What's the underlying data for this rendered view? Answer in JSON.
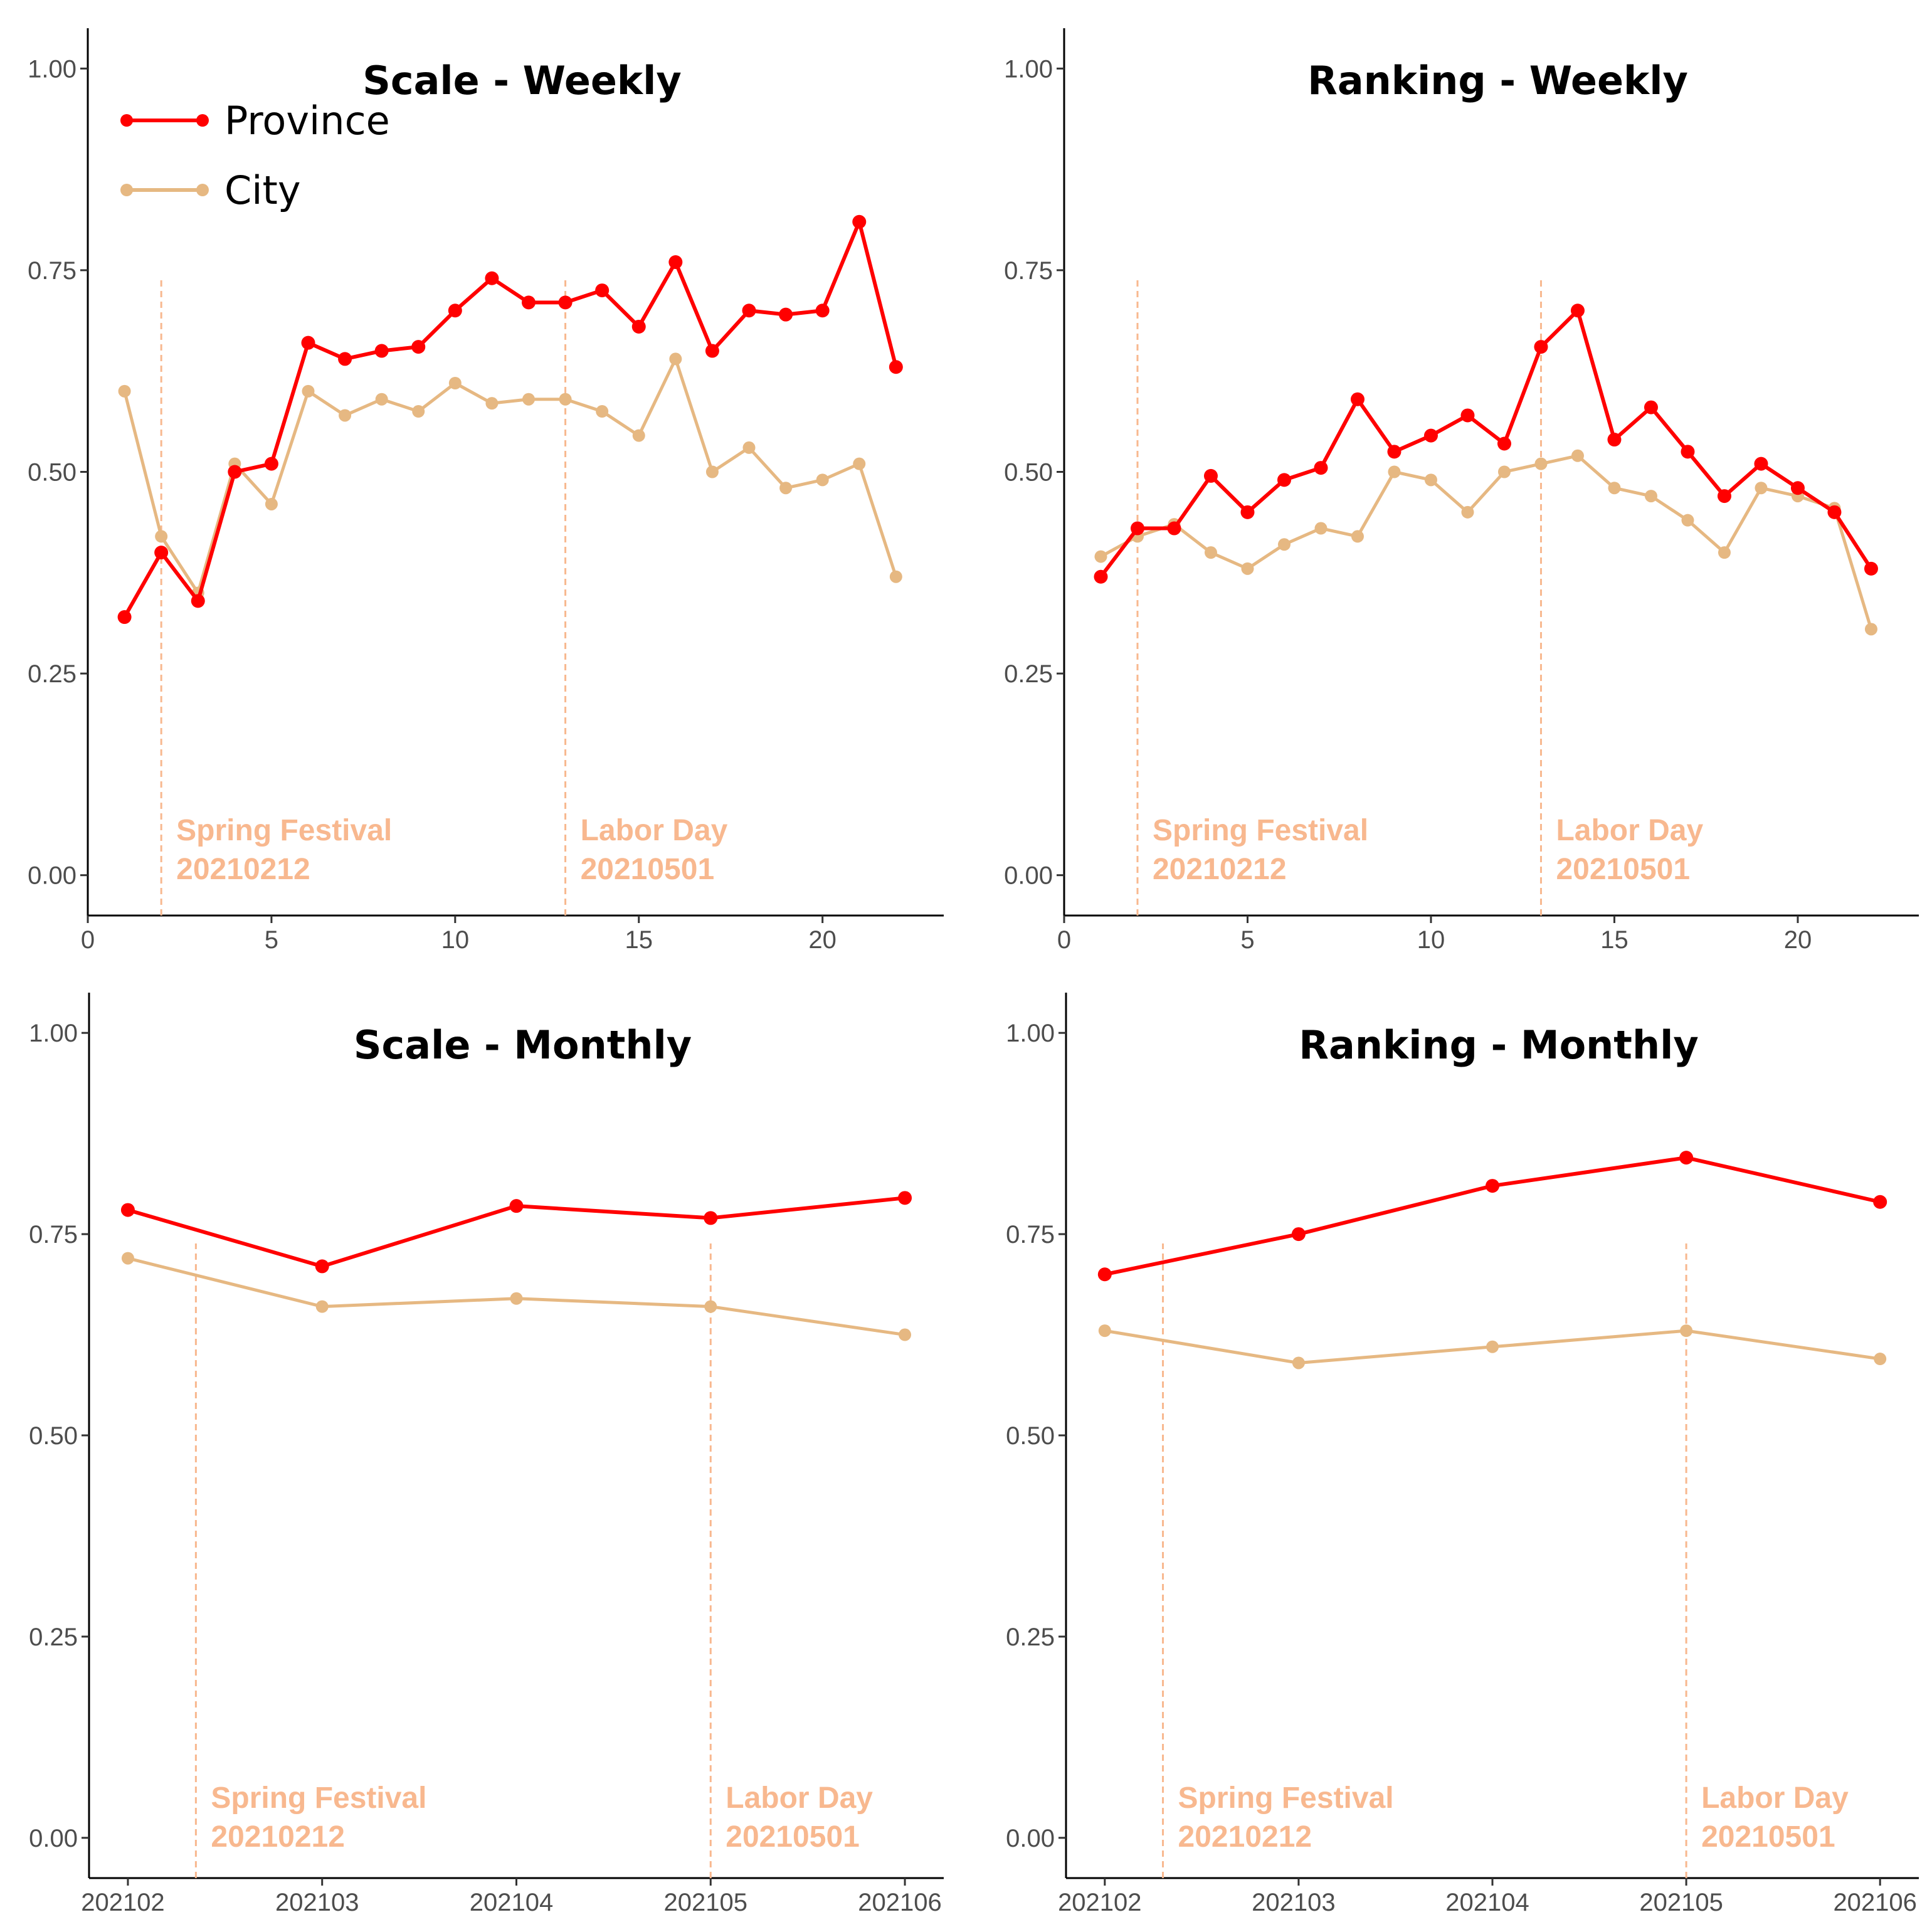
{
  "chart_data": [
    {
      "type": "line",
      "title": "Scale - Weekly",
      "xlabel": "",
      "ylabel": "",
      "x": [
        1,
        2,
        3,
        4,
        5,
        6,
        7,
        8,
        9,
        10,
        11,
        12,
        13,
        14,
        15,
        16,
        17,
        18,
        19,
        20,
        21,
        22
      ],
      "xlim": [
        0,
        23.3
      ],
      "ylim": [
        -0.05,
        1.05
      ],
      "x_ticks": [
        0,
        5,
        10,
        15,
        20
      ],
      "x_tick_labels": [
        "0",
        "5",
        "10",
        "15",
        "20"
      ],
      "y_ticks": [
        0,
        0.25,
        0.5,
        0.75,
        1
      ],
      "y_tick_labels": [
        "0.00",
        "0.25",
        "0.50",
        "0.75",
        "1.00"
      ],
      "series": [
        {
          "name": "Province",
          "color": "#ff0000",
          "values": [
            0.32,
            0.4,
            0.34,
            0.5,
            0.51,
            0.66,
            0.64,
            0.65,
            0.655,
            0.7,
            0.74,
            0.71,
            0.71,
            0.725,
            0.68,
            0.76,
            0.65,
            0.7,
            0.695,
            0.7,
            0.81,
            0.63
          ]
        },
        {
          "name": "City",
          "color": "#e6b882",
          "values": [
            0.6,
            0.42,
            0.35,
            0.51,
            0.46,
            0.6,
            0.57,
            0.59,
            0.575,
            0.61,
            0.585,
            0.59,
            0.59,
            0.575,
            0.545,
            0.64,
            0.5,
            0.53,
            0.48,
            0.49,
            0.51,
            0.37
          ]
        }
      ],
      "legend": {
        "position": "top-left",
        "entries": [
          "Province",
          "City"
        ]
      },
      "annotations": [
        {
          "x": 2,
          "line1": "Spring Festival",
          "line2": "20210212",
          "color": "#f8b88f"
        },
        {
          "x": 13,
          "line1": "Labor Day",
          "line2": "20210501",
          "color": "#f8b88f"
        }
      ]
    },
    {
      "type": "line",
      "title": "Ranking - Weekly",
      "xlabel": "",
      "ylabel": "",
      "x": [
        1,
        2,
        3,
        4,
        5,
        6,
        7,
        8,
        9,
        10,
        11,
        12,
        13,
        14,
        15,
        16,
        17,
        18,
        19,
        20,
        21,
        22
      ],
      "xlim": [
        0,
        23.3
      ],
      "ylim": [
        -0.05,
        1.05
      ],
      "x_ticks": [
        0,
        5,
        10,
        15,
        20
      ],
      "x_tick_labels": [
        "0",
        "5",
        "10",
        "15",
        "20"
      ],
      "y_ticks": [
        0,
        0.25,
        0.5,
        0.75,
        1
      ],
      "y_tick_labels": [
        "0.00",
        "0.25",
        "0.50",
        "0.75",
        "1.00"
      ],
      "series": [
        {
          "name": "Province",
          "color": "#ff0000",
          "values": [
            0.37,
            0.43,
            0.43,
            0.495,
            0.45,
            0.49,
            0.505,
            0.59,
            0.525,
            0.545,
            0.57,
            0.535,
            0.655,
            0.7,
            0.54,
            0.58,
            0.525,
            0.47,
            0.51,
            0.48,
            0.45,
            0.38
          ]
        },
        {
          "name": "City",
          "color": "#e6b882",
          "values": [
            0.395,
            0.42,
            0.435,
            0.4,
            0.38,
            0.41,
            0.43,
            0.42,
            0.5,
            0.49,
            0.45,
            0.5,
            0.51,
            0.52,
            0.48,
            0.47,
            0.44,
            0.4,
            0.48,
            0.47,
            0.455,
            0.305
          ]
        }
      ],
      "annotations": [
        {
          "x": 2,
          "line1": "Spring Festival",
          "line2": "20210212",
          "color": "#f8b88f"
        },
        {
          "x": 13,
          "line1": "Labor Day",
          "line2": "20210501",
          "color": "#f8b88f"
        }
      ]
    },
    {
      "type": "line",
      "title": "Scale - Monthly",
      "xlabel": "",
      "ylabel": "",
      "categories": [
        "202102",
        "202103",
        "202104",
        "202105",
        "202106"
      ],
      "x": [
        1,
        2,
        3,
        4,
        5
      ],
      "xlim": [
        0.8,
        5.2
      ],
      "ylim": [
        -0.05,
        1.05
      ],
      "x_ticks": [
        1,
        2,
        3,
        4,
        5
      ],
      "x_tick_labels": [
        "202102",
        "202103",
        "202104",
        "202105",
        "202106"
      ],
      "y_ticks": [
        0,
        0.25,
        0.5,
        0.75,
        1
      ],
      "y_tick_labels": [
        "0.00",
        "0.25",
        "0.50",
        "0.75",
        "1.00"
      ],
      "series": [
        {
          "name": "Province",
          "color": "#ff0000",
          "values": [
            0.78,
            0.71,
            0.785,
            0.77,
            0.795
          ]
        },
        {
          "name": "City",
          "color": "#e6b882",
          "values": [
            0.72,
            0.66,
            0.67,
            0.66,
            0.625
          ]
        }
      ],
      "annotations": [
        {
          "x": 1.35,
          "line1": "Spring Festival",
          "line2": "20210212",
          "color": "#f8b88f"
        },
        {
          "x": 4.0,
          "line1": "Labor Day",
          "line2": "20210501",
          "color": "#f8b88f"
        }
      ]
    },
    {
      "type": "line",
      "title": "Ranking - Monthly",
      "xlabel": "",
      "ylabel": "",
      "categories": [
        "202102",
        "202103",
        "202104",
        "202105",
        "202106"
      ],
      "x": [
        1,
        2,
        3,
        4,
        5
      ],
      "xlim": [
        0.8,
        5.2
      ],
      "ylim": [
        -0.05,
        1.05
      ],
      "x_ticks": [
        1,
        2,
        3,
        4,
        5
      ],
      "x_tick_labels": [
        "202102",
        "202103",
        "202104",
        "202105",
        "202106"
      ],
      "y_ticks": [
        0,
        0.25,
        0.5,
        0.75,
        1
      ],
      "y_tick_labels": [
        "0.00",
        "0.25",
        "0.50",
        "0.75",
        "1.00"
      ],
      "series": [
        {
          "name": "Province",
          "color": "#ff0000",
          "values": [
            0.7,
            0.75,
            0.81,
            0.845,
            0.79
          ]
        },
        {
          "name": "City",
          "color": "#e6b882",
          "values": [
            0.63,
            0.59,
            0.61,
            0.63,
            0.595
          ]
        }
      ],
      "annotations": [
        {
          "x": 1.3,
          "line1": "Spring Festival",
          "line2": "20210212",
          "color": "#f8b88f"
        },
        {
          "x": 4.0,
          "line1": "Labor Day",
          "line2": "20210501",
          "color": "#f8b88f"
        }
      ]
    }
  ]
}
